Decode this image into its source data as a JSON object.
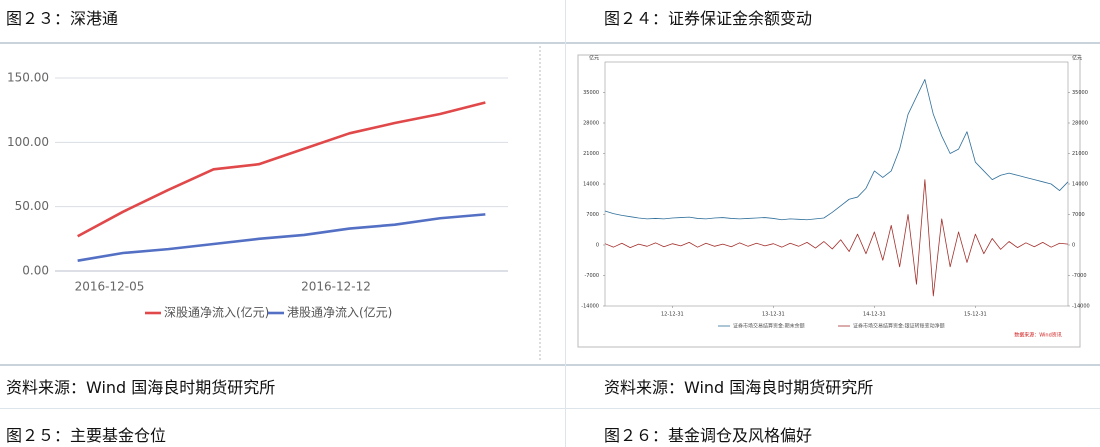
{
  "captions": {
    "top_left": "图２３：深港通",
    "top_right": "图２４：证券保证金余额变动",
    "bottom_left": "图２５：主要基金仓位",
    "bottom_right": "图２６：基金调仓及风格偏好"
  },
  "sources": {
    "left": "资料来源：Wind 国海良时期货研究所",
    "right": "资料来源：Wind 国海良时期货研究所"
  },
  "chart_data": [
    {
      "type": "line",
      "categories": [
        "2016-12-05",
        null,
        null,
        null,
        null,
        "2016-12-12",
        null,
        null,
        null,
        null
      ],
      "series": [
        {
          "name": "深股通净流入(亿元)",
          "color": "#e0484a",
          "values": [
            27,
            46,
            63,
            79,
            83,
            95,
            107,
            115,
            122,
            131
          ]
        },
        {
          "name": "港股通净流入(亿元)",
          "color": "#5470c4",
          "values": [
            8,
            14,
            17,
            21,
            25,
            28,
            33,
            36,
            41,
            44
          ]
        }
      ],
      "ylim": [
        0,
        150
      ],
      "yticks": [
        {
          "value": 0,
          "label": "0.00"
        },
        {
          "value": 50,
          "label": "50.00"
        },
        {
          "value": 100,
          "label": "100.00"
        },
        {
          "value": 150,
          "label": "150.00"
        }
      ],
      "grid": true
    },
    {
      "type": "line",
      "y_label": "亿元",
      "y2_label": "亿元",
      "source": "数据来源：Wind资讯",
      "categories": [
        null,
        null,
        null,
        null,
        null,
        null,
        null,
        null,
        "12-12-31",
        null,
        null,
        null,
        null,
        null,
        null,
        null,
        null,
        null,
        null,
        null,
        "13-12-31",
        null,
        null,
        null,
        null,
        null,
        null,
        null,
        null,
        null,
        null,
        null,
        "14-12-31",
        null,
        null,
        null,
        null,
        null,
        null,
        null,
        null,
        null,
        null,
        null,
        "15-12-31",
        null,
        null,
        null,
        null,
        null,
        null,
        null,
        null,
        null,
        null,
        null
      ],
      "series": [
        {
          "name": "证券市场交易结算资金:期末余额",
          "color": "#2f6f9a",
          "values": [
            7800,
            7200,
            6800,
            6500,
            6200,
            6000,
            6100,
            6000,
            6200,
            6300,
            6400,
            6100,
            6000,
            6200,
            6300,
            6100,
            6000,
            6100,
            6200,
            6300,
            6100,
            5800,
            6000,
            5900,
            5800,
            6000,
            6200,
            7500,
            9000,
            10500,
            11000,
            13000,
            17000,
            15500,
            17000,
            22000,
            30000,
            34000,
            38000,
            30000,
            25000,
            21000,
            22000,
            26000,
            19000,
            17000,
            15000,
            16000,
            16500,
            16000,
            15500,
            15000,
            14500,
            14000,
            12500,
            14500
          ]
        },
        {
          "name": "证券市场交易结算资金:银证转账变动净额",
          "color": "#a3302c",
          "axis": "y2",
          "values": [
            300,
            -500,
            400,
            -600,
            200,
            -300,
            500,
            -400,
            300,
            -200,
            600,
            -500,
            400,
            -300,
            200,
            -400,
            500,
            -300,
            400,
            -200,
            300,
            -500,
            400,
            -300,
            600,
            -700,
            800,
            -900,
            1200,
            -1500,
            2500,
            -2000,
            3000,
            -3500,
            4500,
            -5000,
            7000,
            -9000,
            15000,
            -11700,
            6000,
            -5000,
            3000,
            -4000,
            2500,
            -2000,
            1500,
            -1000,
            800,
            -600,
            500,
            -400,
            600,
            -500,
            400,
            200
          ]
        }
      ],
      "ylim": [
        -14000,
        42000
      ],
      "yticks": [
        -14000,
        -7000,
        0,
        7000,
        14000,
        21000,
        28000,
        35000
      ],
      "y2lim": [
        -14000,
        42000
      ],
      "y2ticks": [
        -14000,
        -7000,
        0,
        7000,
        14000,
        21000,
        28000,
        35000
      ],
      "grid": false
    }
  ]
}
